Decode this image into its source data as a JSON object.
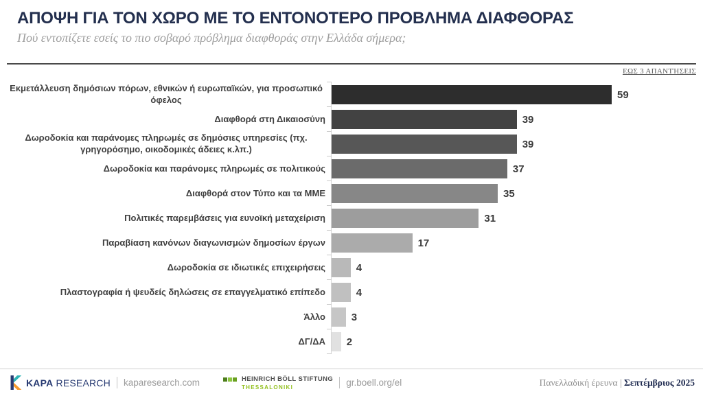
{
  "header": {
    "title": "ΑΠΟΨΗ ΓΙΑ ΤΟΝ ΧΩΡΟ ΜΕ ΤΟ ΕΝΤΟΝΟΤΕΡΟ ΠΡΟΒΛΗΜΑ ΔΙΑΦΘΟΡΑΣ",
    "subtitle": "Πού εντοπίζετε εσείς το πιο σοβαρό πρόβλημα διαφθοράς στην Ελλάδα σήμερα;",
    "note": "ΕΩΣ 3 ΑΠΑΝΤΉΣΕΙΣ"
  },
  "chart_data": {
    "type": "bar",
    "orientation": "horizontal",
    "title": "ΑΠΟΨΗ ΓΙΑ ΤΟΝ ΧΩΡΟ ΜΕ ΤΟ ΕΝΤΟΝΟΤΕΡΟ ΠΡΟΒΛΗΜΑ ΔΙΑΦΘΟΡΑΣ",
    "subtitle": "Πού εντοπίζετε εσείς το πιο σοβαρό πρόβλημα διαφθοράς στην Ελλάδα σήμερα;",
    "categories": [
      "Εκμετάλλευση δημόσιων πόρων, εθνικών ή ευρωπαϊκών, για προσωπικό όφελος",
      "Διαφθορά στη Δικαιοσύνη",
      "Δωροδοκία και παράνομες πληρωμές σε δημόσιες υπηρεσίες (πχ. γρηγορόσημο, οικοδομικές άδειες κ.λπ.)",
      "Δωροδοκία και παράνομες πληρωμές σε πολιτικούς",
      "Διαφθορά στον Τύπο και τα ΜΜΕ",
      "Πολιτικές παρεμβάσεις για ευνοϊκή μεταχείριση",
      "Παραβίαση κανόνων διαγωνισμών δημοσίων έργων",
      "Δωροδοκία σε ιδιωτικές επιχειρήσεις",
      "Πλαστογραφία ή ψευδείς δηλώσεις σε επαγγελματικό επίπεδο",
      "Άλλο",
      "ΔΓ/ΔΑ"
    ],
    "values": [
      59,
      39,
      39,
      37,
      35,
      31,
      17,
      4,
      4,
      3,
      2
    ],
    "bar_colors": [
      "#2d2d2d",
      "#424242",
      "#575757",
      "#6b6b6b",
      "#878787",
      "#9d9d9d",
      "#ababab",
      "#b9b9b9",
      "#c0c0c0",
      "#c6c6c6",
      "#e1e1e1"
    ],
    "value_label_color": "#3a3a3a",
    "xlim": [
      0,
      62
    ],
    "grid": false,
    "legend": false,
    "data_labels": true
  },
  "footer": {
    "kapa": {
      "brand_bold": "KAPA",
      "brand_rest": "RESEARCH",
      "website": "kaparesearch.com",
      "logo_colors": {
        "teal": "#2fb4b6",
        "orange": "#f5992e",
        "navy": "#273a72"
      }
    },
    "boell": {
      "line1": "HEINRICH BÖLL STIFTUNG",
      "line2": "THESSALONIKI",
      "website": "gr.boell.org/el",
      "square_colors": [
        "#4e7f1c",
        "#8dc63f",
        "#6aa121"
      ]
    },
    "right": {
      "survey": "Πανελλαδική έρευνα",
      "separator": " | ",
      "date": "Σεπτέμβριος 2025"
    }
  }
}
